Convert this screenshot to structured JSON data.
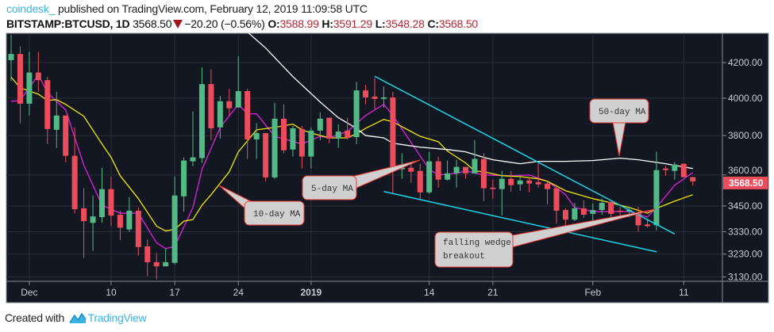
{
  "header": {
    "author": "coindesk_",
    "published": "published on TradingView.com, February 12, 2019 11:09:58 UTC",
    "symbol": "BITSTAMP:BTCUSD, 1D",
    "last": "3568.50",
    "change": "−20.20 (−0.56%)",
    "o_label": "O:",
    "o": "3588.99",
    "h_label": "H:",
    "h": "3591.29",
    "l_label": "L:",
    "l": "3548.28",
    "c_label": "C:",
    "c": "3568.50",
    "change_direction_icon": "triangle-down-icon"
  },
  "footer": {
    "created_with": "Created with",
    "brand": "TradingView"
  },
  "colors": {
    "background": "#131722",
    "up": "#53b987",
    "down": "#eb4d5c",
    "ma5": "#e01ee0",
    "ma10": "#f2e600",
    "ma50": "#ffffff",
    "wedge": "#19d6e6",
    "price_tag": "#eb4d5c"
  },
  "chart_data": {
    "type": "candlestick",
    "scale": "log",
    "grid": true,
    "ylim": [
      3110,
      4380
    ],
    "y_ticks": [
      "4200.00",
      "4000.00",
      "3800.00",
      "3600.00",
      "3450.00",
      "3330.00",
      "3230.00",
      "3130.00"
    ],
    "x_ticks": [
      {
        "date": "2018-12-01",
        "label": "Dec",
        "bold": false
      },
      {
        "date": "2018-12-10",
        "label": "10",
        "bold": false
      },
      {
        "date": "2018-12-17",
        "label": "17",
        "bold": false
      },
      {
        "date": "2018-12-24",
        "label": "24",
        "bold": false
      },
      {
        "date": "2019-01-01",
        "label": "2019",
        "bold": true
      },
      {
        "date": "2019-01-14",
        "label": "14",
        "bold": false
      },
      {
        "date": "2019-01-21",
        "label": "21",
        "bold": false
      },
      {
        "date": "2019-02-01",
        "label": "Feb",
        "bold": false
      },
      {
        "date": "2019-02-11",
        "label": "11",
        "bold": false
      }
    ],
    "last_price_label": "3568.50",
    "candle_fields": [
      "date",
      "open",
      "high",
      "low",
      "close"
    ],
    "candles": [
      [
        "2018-11-29",
        4214,
        4362,
        4096,
        4250
      ],
      [
        "2018-11-30",
        4250,
        4295,
        3864,
        3970
      ],
      [
        "2018-12-01",
        3970,
        4263,
        3906,
        4143
      ],
      [
        "2018-12-02",
        4143,
        4263,
        4035,
        4100
      ],
      [
        "2018-12-03",
        4100,
        4117,
        3756,
        3834
      ],
      [
        "2018-12-04",
        3830,
        4035,
        3736,
        3906
      ],
      [
        "2018-12-05",
        3906,
        3906,
        3664,
        3696
      ],
      [
        "2018-12-06",
        3696,
        3843,
        3416,
        3435
      ],
      [
        "2018-12-07",
        3439,
        3535,
        3212,
        3379
      ],
      [
        "2018-12-08",
        3371,
        3500,
        3244,
        3401
      ],
      [
        "2018-12-09",
        3398,
        3636,
        3371,
        3531
      ],
      [
        "2018-12-10",
        3531,
        3592,
        3356,
        3405
      ],
      [
        "2018-12-11",
        3409,
        3428,
        3292,
        3349
      ],
      [
        "2018-12-12",
        3341,
        3492,
        3330,
        3428
      ],
      [
        "2018-12-13",
        3428,
        3443,
        3223,
        3261
      ],
      [
        "2018-12-14",
        3264,
        3295,
        3134,
        3194
      ],
      [
        "2018-12-15",
        3194,
        3233,
        3120,
        3176
      ],
      [
        "2018-12-16",
        3176,
        3254,
        3176,
        3194
      ],
      [
        "2018-12-17",
        3191,
        3592,
        3184,
        3500
      ],
      [
        "2018-12-18",
        3496,
        3688,
        3424,
        3672
      ],
      [
        "2018-12-19",
        3668,
        3928,
        3644,
        3688
      ],
      [
        "2018-12-20",
        3684,
        4173,
        3660,
        4078
      ],
      [
        "2018-12-21",
        4078,
        4161,
        3776,
        3838
      ],
      [
        "2018-12-22",
        3843,
        4013,
        3784,
        3983
      ],
      [
        "2018-12-23",
        3983,
        4052,
        3906,
        3945
      ],
      [
        "2018-12-24",
        3949,
        4236,
        3949,
        4039
      ],
      [
        "2018-12-25",
        4039,
        4052,
        3680,
        3780
      ],
      [
        "2018-12-26",
        3780,
        3864,
        3680,
        3813
      ],
      [
        "2018-12-27",
        3813,
        3813,
        3569,
        3588
      ],
      [
        "2018-12-28",
        3588,
        3974,
        3581,
        3889
      ],
      [
        "2018-12-29",
        3889,
        3966,
        3708,
        3724
      ],
      [
        "2018-12-30",
        3728,
        3851,
        3692,
        3838
      ],
      [
        "2018-12-31",
        3834,
        3851,
        3632,
        3692
      ],
      [
        "2019-01-01",
        3692,
        3843,
        3632,
        3826
      ],
      [
        "2019-01-02",
        3826,
        3923,
        3776,
        3889
      ],
      [
        "2019-01-03",
        3894,
        3894,
        3760,
        3784
      ],
      [
        "2019-01-04",
        3784,
        3860,
        3736,
        3821
      ],
      [
        "2019-01-05",
        3826,
        3894,
        3780,
        3788
      ],
      [
        "2019-01-06",
        3792,
        4091,
        3756,
        4043
      ],
      [
        "2019-01-07",
        4043,
        4074,
        3966,
        4004
      ],
      [
        "2019-01-08",
        4009,
        4113,
        3940,
        3996
      ],
      [
        "2019-01-09",
        3996,
        4065,
        3949,
        4004
      ],
      [
        "2019-01-10",
        4004,
        4035,
        3511,
        3628
      ],
      [
        "2019-01-11",
        3628,
        3708,
        3581,
        3636
      ],
      [
        "2019-01-12",
        3636,
        3656,
        3562,
        3616
      ],
      [
        "2019-01-13",
        3620,
        3656,
        3481,
        3515
      ],
      [
        "2019-01-14",
        3515,
        3716,
        3508,
        3668
      ],
      [
        "2019-01-15",
        3668,
        3692,
        3538,
        3577
      ],
      [
        "2019-01-16",
        3577,
        3672,
        3573,
        3608
      ],
      [
        "2019-01-17",
        3608,
        3676,
        3538,
        3640
      ],
      [
        "2019-01-18",
        3640,
        3640,
        3581,
        3608
      ],
      [
        "2019-01-19",
        3608,
        3776,
        3608,
        3680
      ],
      [
        "2019-01-20",
        3680,
        3708,
        3473,
        3535
      ],
      [
        "2019-01-21",
        3538,
        3577,
        3485,
        3531
      ],
      [
        "2019-01-22",
        3531,
        3620,
        3405,
        3581
      ],
      [
        "2019-01-23",
        3581,
        3620,
        3519,
        3550
      ],
      [
        "2019-01-24",
        3554,
        3600,
        3523,
        3573
      ],
      [
        "2019-01-25",
        3573,
        3588,
        3515,
        3558
      ],
      [
        "2019-01-26",
        3565,
        3660,
        3538,
        3554
      ],
      [
        "2019-01-27",
        3558,
        3569,
        3458,
        3531
      ],
      [
        "2019-01-28",
        3535,
        3535,
        3368,
        3428
      ],
      [
        "2019-01-29",
        3431,
        3439,
        3349,
        3386
      ],
      [
        "2019-01-30",
        3386,
        3465,
        3379,
        3439
      ],
      [
        "2019-01-31",
        3439,
        3477,
        3394,
        3409
      ],
      [
        "2019-02-01",
        3413,
        3462,
        3364,
        3431
      ],
      [
        "2019-02-02",
        3431,
        3485,
        3409,
        3465
      ],
      [
        "2019-02-03",
        3469,
        3473,
        3386,
        3413
      ],
      [
        "2019-02-04",
        3428,
        3446,
        3398,
        3424
      ],
      [
        "2019-02-05",
        3424,
        3446,
        3398,
        3431
      ],
      [
        "2019-02-06",
        3416,
        3446,
        3330,
        3360
      ],
      [
        "2019-02-07",
        3364,
        3386,
        3349,
        3356
      ],
      [
        "2019-02-08",
        3360,
        3716,
        3337,
        3624
      ],
      [
        "2019-02-09",
        3632,
        3644,
        3596,
        3624
      ],
      [
        "2019-02-10",
        3620,
        3664,
        3577,
        3652
      ],
      [
        "2019-02-11",
        3656,
        3656,
        3588,
        3589
      ],
      [
        "2019-02-12",
        3588.99,
        3591.29,
        3548.28,
        3568.5
      ]
    ],
    "moving_averages": [
      {
        "key": "ma5",
        "points": [
          [
            "2018-11-29",
            3983
          ],
          [
            "2018-11-30",
            3987
          ],
          [
            "2018-12-02",
            4130
          ],
          [
            "2018-12-03",
            4030
          ],
          [
            "2018-12-05",
            3936
          ],
          [
            "2018-12-07",
            3648
          ],
          [
            "2018-12-09",
            3454
          ],
          [
            "2018-12-11",
            3416
          ],
          [
            "2018-12-13",
            3416
          ],
          [
            "2018-12-15",
            3280
          ],
          [
            "2018-12-16",
            3254
          ],
          [
            "2018-12-17",
            3264
          ],
          [
            "2018-12-19",
            3443
          ],
          [
            "2018-12-20",
            3628
          ],
          [
            "2018-12-22",
            3843
          ],
          [
            "2018-12-24",
            3966
          ],
          [
            "2018-12-25",
            3915
          ],
          [
            "2018-12-26",
            3915
          ],
          [
            "2018-12-28",
            3796
          ],
          [
            "2018-12-31",
            3756
          ],
          [
            "2019-01-02",
            3796
          ],
          [
            "2019-01-03",
            3788
          ],
          [
            "2019-01-05",
            3821
          ],
          [
            "2019-01-07",
            3906
          ],
          [
            "2019-01-09",
            3966
          ],
          [
            "2019-01-10",
            3906
          ],
          [
            "2019-01-14",
            3628
          ],
          [
            "2019-01-15",
            3600
          ],
          [
            "2019-01-17",
            3608
          ],
          [
            "2019-01-18",
            3620
          ],
          [
            "2019-01-20",
            3600
          ],
          [
            "2019-01-23",
            3596
          ],
          [
            "2019-01-25",
            3600
          ],
          [
            "2019-01-27",
            3569
          ],
          [
            "2019-01-29",
            3504
          ],
          [
            "2019-01-30",
            3443
          ],
          [
            "2019-02-01",
            3424
          ],
          [
            "2019-02-03",
            3424
          ],
          [
            "2019-02-05",
            3424
          ],
          [
            "2019-02-07",
            3398
          ],
          [
            "2019-02-08",
            3443
          ],
          [
            "2019-02-10",
            3550
          ],
          [
            "2019-02-12",
            3612
          ]
        ]
      },
      {
        "key": "ma10",
        "points": [
          [
            "2018-11-29",
            4117
          ],
          [
            "2018-11-30",
            4057
          ],
          [
            "2018-12-02",
            4022
          ],
          [
            "2018-12-03",
            3987
          ],
          [
            "2018-12-04",
            3992
          ],
          [
            "2018-12-05",
            3966
          ],
          [
            "2018-12-07",
            3902
          ],
          [
            "2018-12-09",
            3756
          ],
          [
            "2018-12-10",
            3688
          ],
          [
            "2018-12-11",
            3596
          ],
          [
            "2018-12-13",
            3485
          ],
          [
            "2018-12-15",
            3356
          ],
          [
            "2018-12-16",
            3334
          ],
          [
            "2018-12-17",
            3341
          ],
          [
            "2018-12-18",
            3379
          ],
          [
            "2018-12-19",
            3386
          ],
          [
            "2018-12-20",
            3454
          ],
          [
            "2018-12-21",
            3504
          ],
          [
            "2018-12-23",
            3616
          ],
          [
            "2018-12-24",
            3716
          ],
          [
            "2018-12-26",
            3830
          ],
          [
            "2018-12-28",
            3843
          ],
          [
            "2018-12-30",
            3860
          ],
          [
            "2018-12-31",
            3830
          ],
          [
            "2019-01-01",
            3813
          ],
          [
            "2019-01-03",
            3788
          ],
          [
            "2019-01-05",
            3788
          ],
          [
            "2019-01-06",
            3809
          ],
          [
            "2019-01-07",
            3838
          ],
          [
            "2019-01-09",
            3885
          ],
          [
            "2019-01-10",
            3872
          ],
          [
            "2019-01-12",
            3821
          ],
          [
            "2019-01-13",
            3796
          ],
          [
            "2019-01-15",
            3768
          ],
          [
            "2019-01-16",
            3720
          ],
          [
            "2019-01-18",
            3660
          ],
          [
            "2019-01-19",
            3620
          ],
          [
            "2019-01-20",
            3616
          ],
          [
            "2019-01-22",
            3596
          ],
          [
            "2019-01-24",
            3592
          ],
          [
            "2019-01-26",
            3581
          ],
          [
            "2019-01-27",
            3569
          ],
          [
            "2019-01-29",
            3523
          ],
          [
            "2019-02-01",
            3485
          ],
          [
            "2019-02-03",
            3465
          ],
          [
            "2019-02-05",
            3443
          ],
          [
            "2019-02-07",
            3416
          ],
          [
            "2019-02-08",
            3439
          ],
          [
            "2019-02-10",
            3473
          ],
          [
            "2019-02-12",
            3504
          ]
        ]
      },
      {
        "key": "ma50",
        "points": [
          [
            "2018-12-25",
            4380
          ],
          [
            "2018-12-27",
            4285
          ],
          [
            "2018-12-30",
            4120
          ],
          [
            "2019-01-02",
            3979
          ],
          [
            "2019-01-04",
            3894
          ],
          [
            "2019-01-06",
            3838
          ],
          [
            "2019-01-07",
            3800
          ],
          [
            "2019-01-09",
            3788
          ],
          [
            "2019-01-10",
            3760
          ],
          [
            "2019-01-13",
            3740
          ],
          [
            "2019-01-16",
            3728
          ],
          [
            "2019-01-18",
            3716
          ],
          [
            "2019-01-20",
            3688
          ],
          [
            "2019-01-21",
            3676
          ],
          [
            "2019-01-24",
            3656
          ],
          [
            "2019-01-26",
            3668
          ],
          [
            "2019-01-29",
            3668
          ],
          [
            "2019-02-01",
            3672
          ],
          [
            "2019-02-04",
            3684
          ],
          [
            "2019-02-06",
            3676
          ],
          [
            "2019-02-09",
            3656
          ],
          [
            "2019-02-12",
            3632
          ]
        ]
      }
    ],
    "trendlines": [
      {
        "name": "wedge-upper",
        "from": [
          "2019-01-08",
          4122
        ],
        "to": [
          "2019-02-10",
          3320
        ]
      },
      {
        "name": "wedge-lower",
        "from": [
          "2019-01-09",
          3519
        ],
        "to": [
          "2019-02-08",
          3240
        ]
      }
    ],
    "annotations": {
      "ma5": "5-day MA",
      "ma10": "10-day MA",
      "ma50": "50-day MA",
      "breakout_line1": "falling wedge",
      "breakout_line2": "breakout"
    }
  }
}
